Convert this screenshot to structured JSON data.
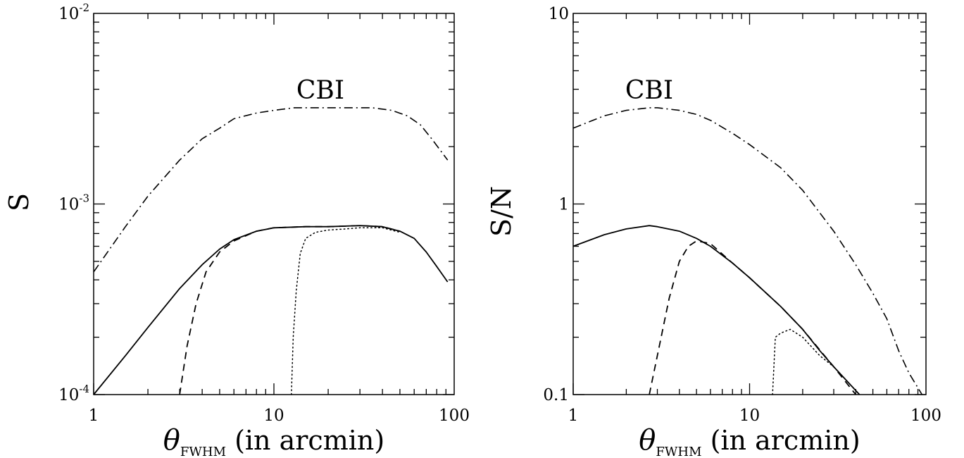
{
  "chart_data": [
    {
      "type": "line",
      "xscale": "log",
      "yscale": "log",
      "xlim": [
        1,
        100
      ],
      "ylim": [
        0.0001,
        0.01
      ],
      "xlabel": {
        "symbol": "θ",
        "subscript": "FWHM",
        "text": "(in arcmin)"
      },
      "ylabel": "S",
      "x_tick_labels": [
        "1",
        "10",
        "100"
      ],
      "y_tick_labels": [
        {
          "mantissa": "10",
          "exponent": "-4"
        },
        {
          "mantissa": "10",
          "exponent": "-3"
        },
        {
          "mantissa": "10",
          "exponent": "-2"
        }
      ],
      "annotations": [
        {
          "text": "CBI"
        }
      ],
      "series": [
        {
          "style": "solid",
          "points": [
            [
              1,
              0.0001
            ],
            [
              1.5,
              0.00016
            ],
            [
              2,
              0.000225
            ],
            [
              3,
              0.00036
            ],
            [
              4,
              0.00048
            ],
            [
              5,
              0.00058
            ],
            [
              6,
              0.00065
            ],
            [
              8,
              0.00072
            ],
            [
              10,
              0.00075
            ],
            [
              15,
              0.00076
            ],
            [
              20,
              0.00076
            ],
            [
              30,
              0.00077
            ],
            [
              40,
              0.00076
            ],
            [
              50,
              0.00072
            ],
            [
              60,
              0.00066
            ],
            [
              70,
              0.00056
            ],
            [
              80,
              0.00047
            ],
            [
              92,
              0.00039
            ]
          ]
        },
        {
          "style": "dashed",
          "points": [
            [
              3,
              0.0001
            ],
            [
              3.3,
              0.00018
            ],
            [
              3.7,
              0.0003
            ],
            [
              4.2,
              0.00044
            ],
            [
              5,
              0.00056
            ],
            [
              6,
              0.00064
            ],
            [
              8,
              0.00072
            ],
            [
              10,
              0.00075
            ],
            [
              15,
              0.00076
            ],
            [
              20,
              0.00076
            ],
            [
              30,
              0.00077
            ],
            [
              40,
              0.00076
            ],
            [
              50,
              0.00072
            ]
          ]
        },
        {
          "style": "dotted",
          "points": [
            [
              12.5,
              0.0001
            ],
            [
              12.8,
              0.0002
            ],
            [
              13.3,
              0.00035
            ],
            [
              14,
              0.00055
            ],
            [
              15,
              0.00066
            ],
            [
              17,
              0.00071
            ],
            [
              20,
              0.00073
            ],
            [
              25,
              0.00074
            ],
            [
              30,
              0.00075
            ],
            [
              35,
              0.00075
            ],
            [
              40,
              0.00075
            ],
            [
              50,
              0.00071
            ]
          ]
        },
        {
          "style": "dashdot",
          "points": [
            [
              1,
              0.00044
            ],
            [
              1.5,
              0.00076
            ],
            [
              2,
              0.0011
            ],
            [
              3,
              0.0017
            ],
            [
              4,
              0.0022
            ],
            [
              5,
              0.0025
            ],
            [
              6,
              0.0028
            ],
            [
              8,
              0.003
            ],
            [
              10,
              0.0031
            ],
            [
              13,
              0.0032
            ],
            [
              20,
              0.0032
            ],
            [
              25,
              0.0032
            ],
            [
              35,
              0.0032
            ],
            [
              45,
              0.0031
            ],
            [
              55,
              0.0029
            ],
            [
              65,
              0.0026
            ],
            [
              75,
              0.0022
            ],
            [
              92,
              0.0017
            ]
          ]
        }
      ]
    },
    {
      "type": "line",
      "xscale": "log",
      "yscale": "log",
      "xlim": [
        1,
        100
      ],
      "ylim": [
        0.1,
        10
      ],
      "xlabel": {
        "symbol": "θ",
        "subscript": "FWHM",
        "text": "(in arcmin)"
      },
      "ylabel": "S/N",
      "x_tick_labels": [
        "1",
        "10",
        "100"
      ],
      "y_tick_labels": [
        {
          "mantissa": "0.1"
        },
        {
          "mantissa": "1"
        },
        {
          "mantissa": "10"
        }
      ],
      "annotations": [
        {
          "text": "CBI"
        }
      ],
      "series": [
        {
          "style": "solid",
          "points": [
            [
              1,
              0.6
            ],
            [
              1.5,
              0.69
            ],
            [
              2,
              0.74
            ],
            [
              2.7,
              0.77
            ],
            [
              3,
              0.76
            ],
            [
              4,
              0.72
            ],
            [
              5,
              0.66
            ],
            [
              6,
              0.6
            ],
            [
              8,
              0.49
            ],
            [
              10,
              0.41
            ],
            [
              15,
              0.29
            ],
            [
              20,
              0.22
            ],
            [
              25,
              0.17
            ],
            [
              30,
              0.14
            ],
            [
              35,
              0.12
            ],
            [
              42,
              0.1
            ]
          ]
        },
        {
          "style": "dashed",
          "points": [
            [
              2.7,
              0.1
            ],
            [
              3,
              0.16
            ],
            [
              3.5,
              0.32
            ],
            [
              4,
              0.5
            ],
            [
              4.5,
              0.6
            ],
            [
              5,
              0.64
            ],
            [
              6,
              0.62
            ],
            [
              8,
              0.49
            ],
            [
              10,
              0.41
            ],
            [
              15,
              0.29
            ],
            [
              20,
              0.22
            ],
            [
              30,
              0.14
            ],
            [
              40,
              0.1
            ]
          ]
        },
        {
          "style": "dotted",
          "points": [
            [
              13.5,
              0.1
            ],
            [
              14,
              0.2
            ],
            [
              15,
              0.21
            ],
            [
              17,
              0.22
            ],
            [
              20,
              0.2
            ],
            [
              25,
              0.16
            ],
            [
              30,
              0.14
            ],
            [
              35,
              0.12
            ],
            [
              42,
              0.1
            ]
          ]
        },
        {
          "style": "dashdot",
          "points": [
            [
              1,
              2.5
            ],
            [
              1.5,
              2.9
            ],
            [
              2,
              3.1
            ],
            [
              2.7,
              3.2
            ],
            [
              3,
              3.2
            ],
            [
              4,
              3.1
            ],
            [
              5,
              2.95
            ],
            [
              6,
              2.75
            ],
            [
              8,
              2.35
            ],
            [
              10,
              2.05
            ],
            [
              15,
              1.55
            ],
            [
              20,
              1.18
            ],
            [
              30,
              0.72
            ],
            [
              40,
              0.48
            ],
            [
              50,
              0.34
            ],
            [
              60,
              0.25
            ],
            [
              70,
              0.17
            ],
            [
              80,
              0.13
            ],
            [
              95,
              0.1
            ]
          ]
        }
      ]
    }
  ]
}
